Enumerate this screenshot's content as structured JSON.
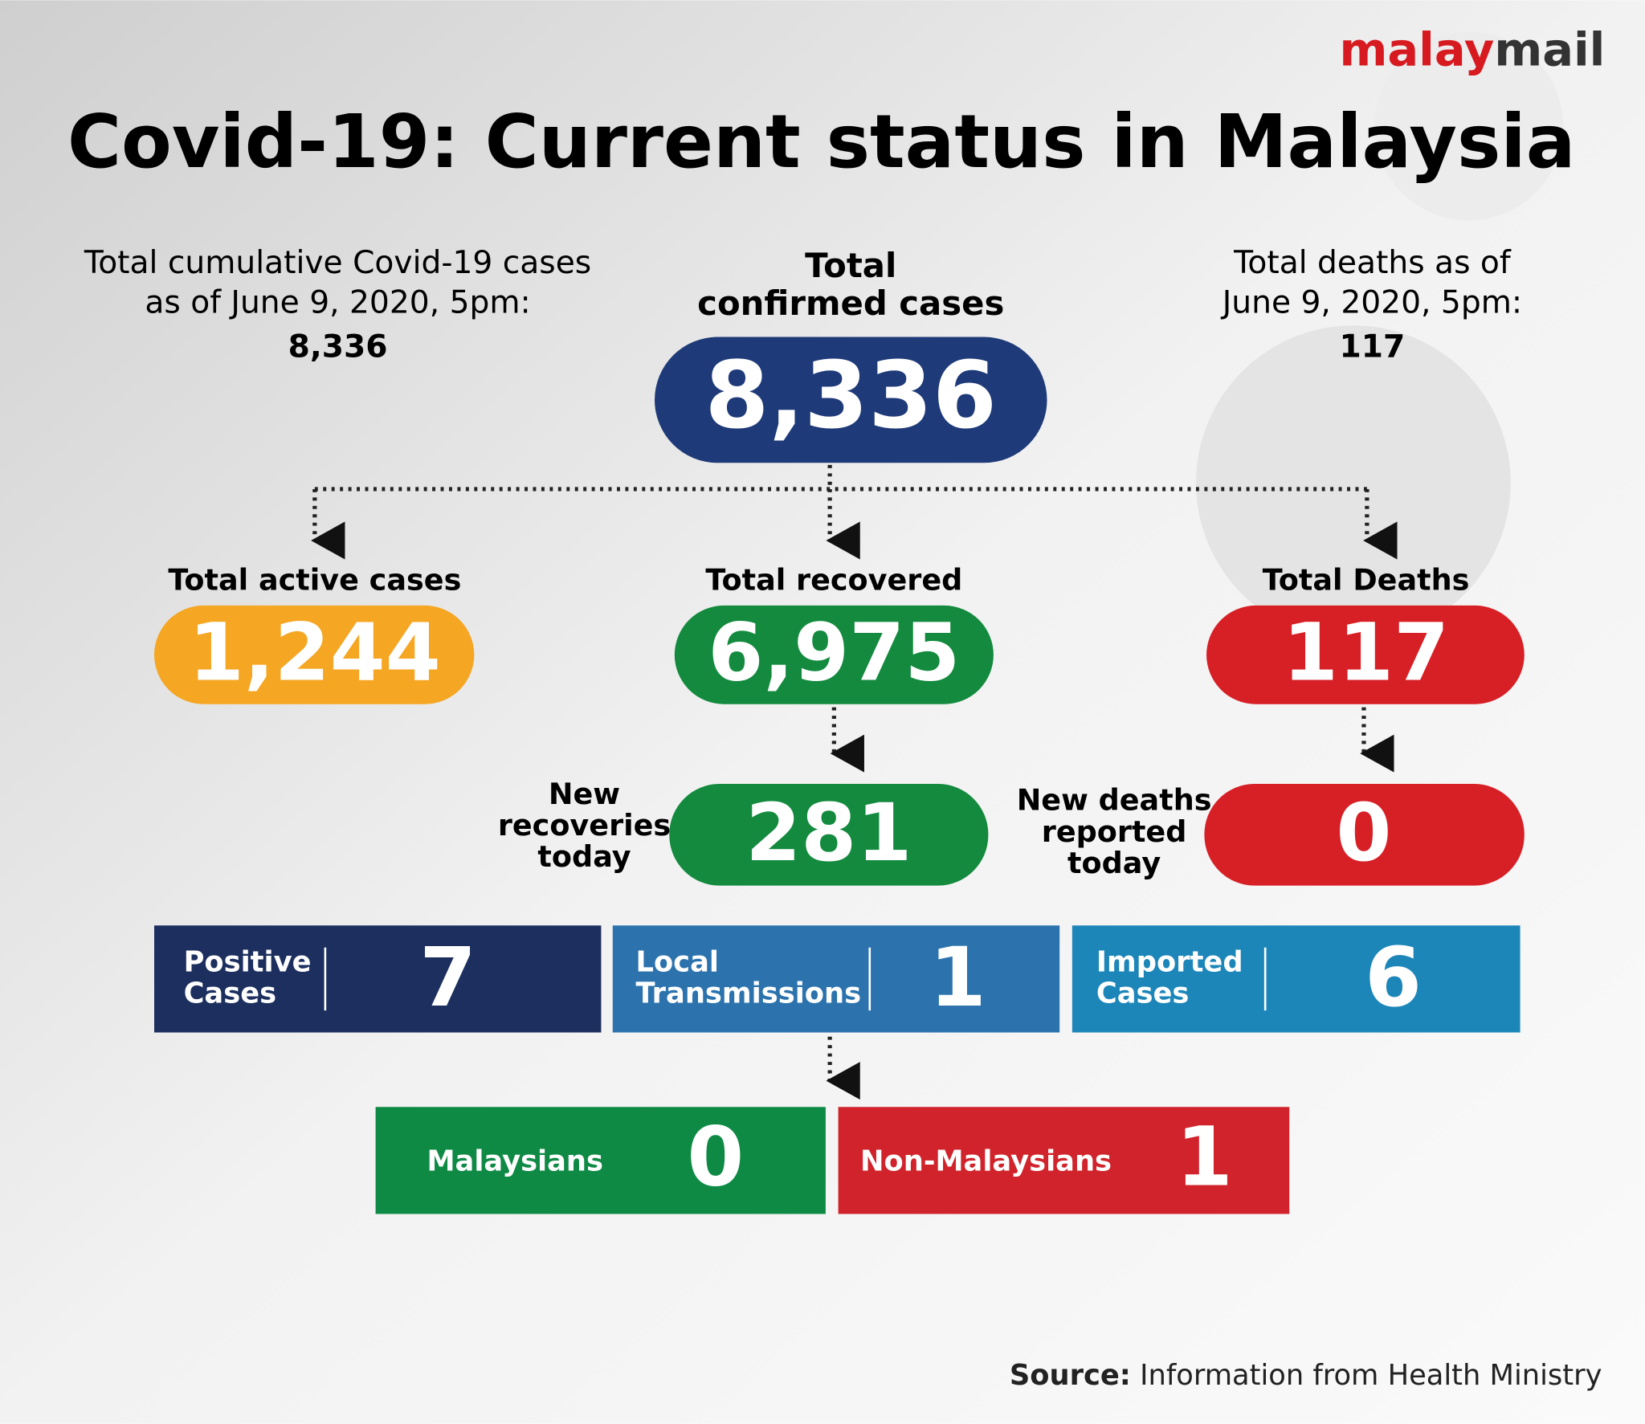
{
  "brand": {
    "part1": "malay",
    "part2": "mail"
  },
  "title": "Covid-19: Current status in Malaysia",
  "left_note": {
    "lines": [
      "Total cumulative Covid-19 cases",
      "as of June 9, 2020, 5pm:"
    ],
    "value": "8,336"
  },
  "confirmed": {
    "lines": [
      "Total",
      "confirmed cases"
    ],
    "value": "8,336"
  },
  "right_note": {
    "lines": [
      "Total deaths as of",
      "June 9, 2020, 5pm:"
    ],
    "value": "117"
  },
  "active": {
    "label": "Total active cases",
    "value": "1,244"
  },
  "recovered": {
    "label": "Total recovered",
    "value": "6,975"
  },
  "deaths": {
    "label": "Total Deaths",
    "value": "117"
  },
  "new_recoveries": {
    "lines": [
      "New",
      "recoveries",
      "today"
    ],
    "value": "281"
  },
  "new_deaths": {
    "lines": [
      "New deaths",
      "reported",
      "today"
    ],
    "value": "0"
  },
  "positive": {
    "lines": [
      "Positive",
      "Cases"
    ],
    "value": "7"
  },
  "local": {
    "lines": [
      "Local",
      "Transmissions"
    ],
    "value": "1"
  },
  "imported": {
    "lines": [
      "Imported",
      "Cases"
    ],
    "value": "6"
  },
  "malaysians": {
    "label": "Malaysians",
    "value": "0"
  },
  "non_malaysians": {
    "label": "Non-Malaysians",
    "value": "1"
  },
  "source": {
    "label": "Source:",
    "text": "Information from Health Ministry"
  }
}
